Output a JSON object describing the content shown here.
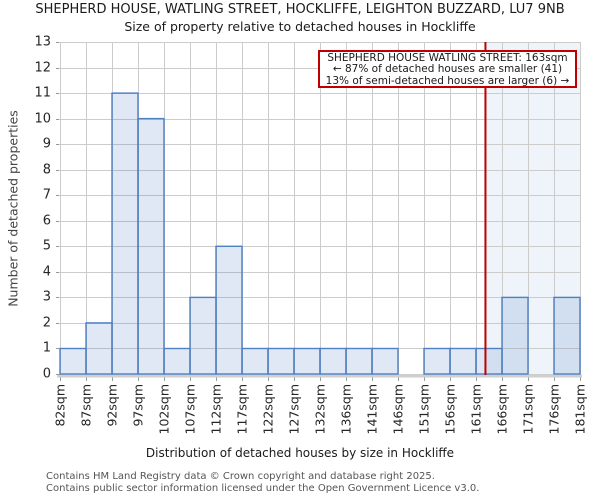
{
  "chart_data": {
    "type": "bar",
    "title": "SHEPHERD HOUSE, WATLING STREET, HOCKLIFFE, LEIGHTON BUZZARD, LU7 9NB",
    "subtitle": "Size of property relative to detached houses in Hockliffe",
    "xlabel": "Distribution of detached houses by size in Hockliffe",
    "ylabel": "Number of detached properties",
    "x_tick_labels": [
      "82sqm",
      "87sqm",
      "92sqm",
      "97sqm",
      "102sqm",
      "107sqm",
      "112sqm",
      "117sqm",
      "122sqm",
      "127sqm",
      "132sqm",
      "136sqm",
      "141sqm",
      "146sqm",
      "151sqm",
      "156sqm",
      "161sqm",
      "166sqm",
      "171sqm",
      "176sqm",
      "181sqm"
    ],
    "bin_edges_sqm": [
      82,
      87,
      92,
      97,
      102,
      107,
      112,
      117,
      122,
      127,
      132,
      136,
      141,
      146,
      151,
      156,
      161,
      166,
      171,
      176,
      181
    ],
    "values": [
      1,
      2,
      11,
      10,
      1,
      3,
      5,
      1,
      1,
      1,
      1,
      1,
      1,
      0,
      1,
      1,
      1,
      3,
      0,
      3
    ],
    "ylim": [
      0,
      13
    ],
    "y_tick_step": 1,
    "grid": true,
    "legend": "none",
    "marker": {
      "value_sqm": 163,
      "label_line1": "SHEPHERD HOUSE WATLING STREET: 163sqm",
      "label_line2": "← 87% of detached houses are smaller (41)",
      "label_line3": "13% of semi-detached houses are larger (6) →",
      "shade_right_of_marker": true
    },
    "colors": {
      "bar_fill": "rgba(79,129,195,0.18)",
      "bar_stroke": "#4d80c4",
      "marker_line": "#c00000",
      "annotation_border": "#c00000",
      "shade_fill": "rgba(79,129,195,0.09)",
      "grid": "#cccccc",
      "axis_line": "#cfcfcf",
      "tick": "#999999",
      "text": "#1a1a1a",
      "footer_text": "#555555"
    }
  },
  "footer": {
    "line1": "Contains HM Land Registry data © Crown copyright and database right 2025.",
    "line2": "Contains public sector information licensed under the Open Government Licence v3.0."
  }
}
